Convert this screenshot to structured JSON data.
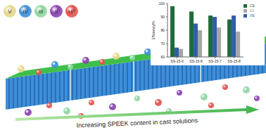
{
  "chart_data": {
    "type": "bar",
    "y_label": "Efficiency/%",
    "categories": [
      "SS-15-0",
      "SS-15-6",
      "SS-15-7",
      "SS-15-8"
    ],
    "series": [
      {
        "name": "CE",
        "color": "#1f6b3a",
        "values": [
          98,
          94,
          91,
          88
        ]
      },
      {
        "name": "VE",
        "color": "#2f5fa8",
        "values": [
          67,
          85,
          90,
          91
        ]
      },
      {
        "name": "EE",
        "color": "#a6a6a6",
        "values": [
          66,
          80,
          82,
          79
        ]
      }
    ],
    "ylim": [
      60,
      100
    ],
    "yticks": [
      60,
      70,
      80,
      90,
      100
    ],
    "legend": "right"
  },
  "diagram": {
    "ions": [
      {
        "label": "V",
        "color": "#e6d98f"
      },
      {
        "label": "IV",
        "color": "#3f8fd6"
      },
      {
        "label": "III",
        "color": "#8fd6a2"
      },
      {
        "label": "II",
        "color": "#8a45b3"
      },
      {
        "label": "H⁺",
        "color": "#e0554f"
      }
    ],
    "caption": "Increasing SPEEK content in cast solutions"
  }
}
